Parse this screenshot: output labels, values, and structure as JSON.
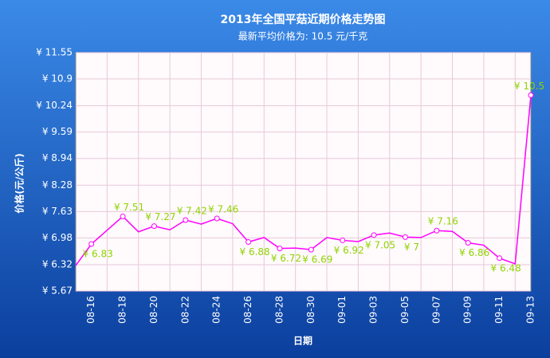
{
  "chart_data": {
    "type": "line",
    "title": "2013年全国平菇近期价格走势图",
    "subtitle": "最新平均价格为: 10.5 元/千克",
    "x_label": "日期",
    "y_label": "价格(元/公斤)",
    "categories": [
      null,
      "08-16",
      null,
      "08-18",
      null,
      "08-20",
      null,
      "08-22",
      null,
      "08-24",
      null,
      "08-26",
      null,
      "08-28",
      null,
      "08-30",
      null,
      "09-01",
      null,
      "09-03",
      null,
      "09-05",
      null,
      "09-07",
      null,
      "09-09",
      null,
      "09-11",
      null,
      "09-13"
    ],
    "series": [
      {
        "color": "#ff00ff",
        "values": [
          6.3,
          6.83,
          7.17,
          7.51,
          7.13,
          7.27,
          7.18,
          7.42,
          7.32,
          7.46,
          7.33,
          6.88,
          6.99,
          6.72,
          6.73,
          6.69,
          6.99,
          6.92,
          6.89,
          7.05,
          7.1,
          7,
          6.99,
          7.16,
          7.14,
          6.86,
          6.8,
          6.48,
          6.34,
          10.5
        ],
        "value_labels": [
          null,
          "¥ 6.83",
          null,
          "¥ 7.51",
          null,
          "¥ 7.27",
          null,
          "¥ 7.42",
          null,
          "¥ 7.46",
          null,
          "¥ 6.88",
          null,
          "¥ 6.72",
          null,
          "¥ 6.69",
          null,
          "¥ 6.92",
          null,
          "¥ 7.05",
          null,
          "¥ 7",
          null,
          "¥ 7.16",
          null,
          "¥ 6.86",
          null,
          "¥ 6.48",
          null,
          "¥ 10.5"
        ]
      }
    ],
    "ylim": [
      5.67,
      11.55
    ],
    "yticks": [
      {
        "value": 5.67,
        "label": "¥ 5.67"
      },
      {
        "value": 6.32,
        "label": "¥ 6.32"
      },
      {
        "value": 6.98,
        "label": "¥ 6.98"
      },
      {
        "value": 7.63,
        "label": "¥ 7.63"
      },
      {
        "value": 8.28,
        "label": "¥ 8.28"
      },
      {
        "value": 8.94,
        "label": "¥ 8.94"
      },
      {
        "value": 9.59,
        "label": "¥ 9.59"
      },
      {
        "value": 10.24,
        "label": "¥ 10.24"
      },
      {
        "value": 10.9,
        "label": "¥ 10.9"
      },
      {
        "value": 11.55,
        "label": "¥ 11.55"
      }
    ],
    "grid": true,
    "label_color": "#8fd400"
  }
}
